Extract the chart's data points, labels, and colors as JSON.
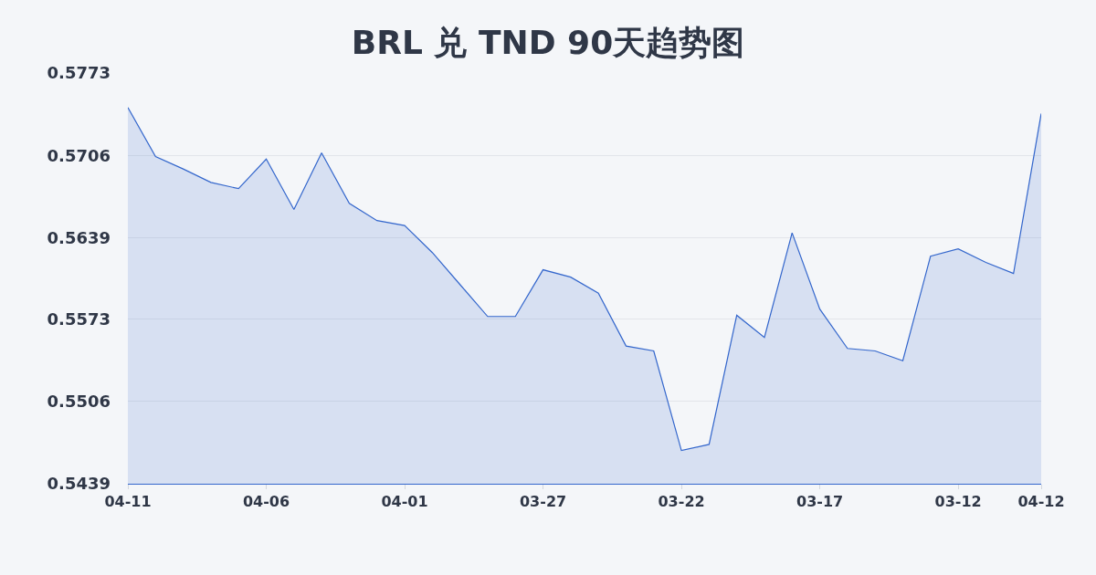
{
  "chart_data": {
    "type": "area",
    "title": "BRL 兑 TND 90天趋势图",
    "categories": [
      "04-11",
      null,
      null,
      null,
      null,
      "04-06",
      null,
      null,
      null,
      null,
      "04-01",
      null,
      null,
      null,
      null,
      "03-27",
      null,
      null,
      null,
      null,
      "03-22",
      null,
      null,
      null,
      null,
      "03-17",
      null,
      null,
      null,
      null,
      "03-12",
      null,
      null,
      "04-12"
    ],
    "series": [
      {
        "color": "#3366cc",
        "values": [
          0.5745,
          0.5705,
          0.5695,
          0.5684,
          0.5679,
          0.5703,
          0.5662,
          0.5708,
          0.5667,
          0.5653,
          0.5649,
          0.5627,
          0.5601,
          0.5575,
          0.5575,
          0.5613,
          0.5607,
          0.5594,
          0.5551,
          0.5547,
          0.5466,
          0.5471,
          0.5576,
          0.5558,
          0.5643,
          0.5581,
          0.5549,
          0.5547,
          0.5539,
          0.5624,
          0.563,
          0.5619,
          0.561,
          0.574
        ]
      }
    ],
    "ylim": [
      0.5439,
      0.5773
    ],
    "yticks": [
      0.5439,
      0.5506,
      0.5573,
      0.5639,
      0.5706,
      0.5773
    ],
    "grid": "y"
  }
}
